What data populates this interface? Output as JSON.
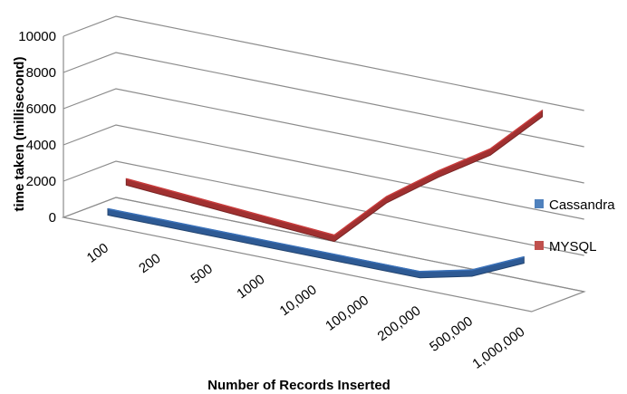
{
  "chart_data": {
    "type": "line",
    "style": "3d-ribbon",
    "categories": [
      "100",
      "200",
      "500",
      "1000",
      "10,000",
      "100,000",
      "200,000",
      "500,000",
      "1,000,000"
    ],
    "series": [
      {
        "name": "Cassandra",
        "color": "#2e5a94",
        "values": [
          30,
          30,
          30,
          30,
          30,
          30,
          30,
          700,
          2000
        ]
      },
      {
        "name": "MYSQL",
        "color": "#a03030",
        "values": [
          1300,
          1100,
          900,
          700,
          500,
          3200,
          5200,
          7000,
          9700
        ]
      }
    ],
    "y_ticks": [
      "0",
      "2000",
      "4000",
      "6000",
      "8000",
      "10000"
    ],
    "ylim": [
      0,
      10000
    ],
    "xlabel": "Number of Records Inserted",
    "ylabel": "time taken (millisecond)",
    "grid": true,
    "legend": "right"
  }
}
